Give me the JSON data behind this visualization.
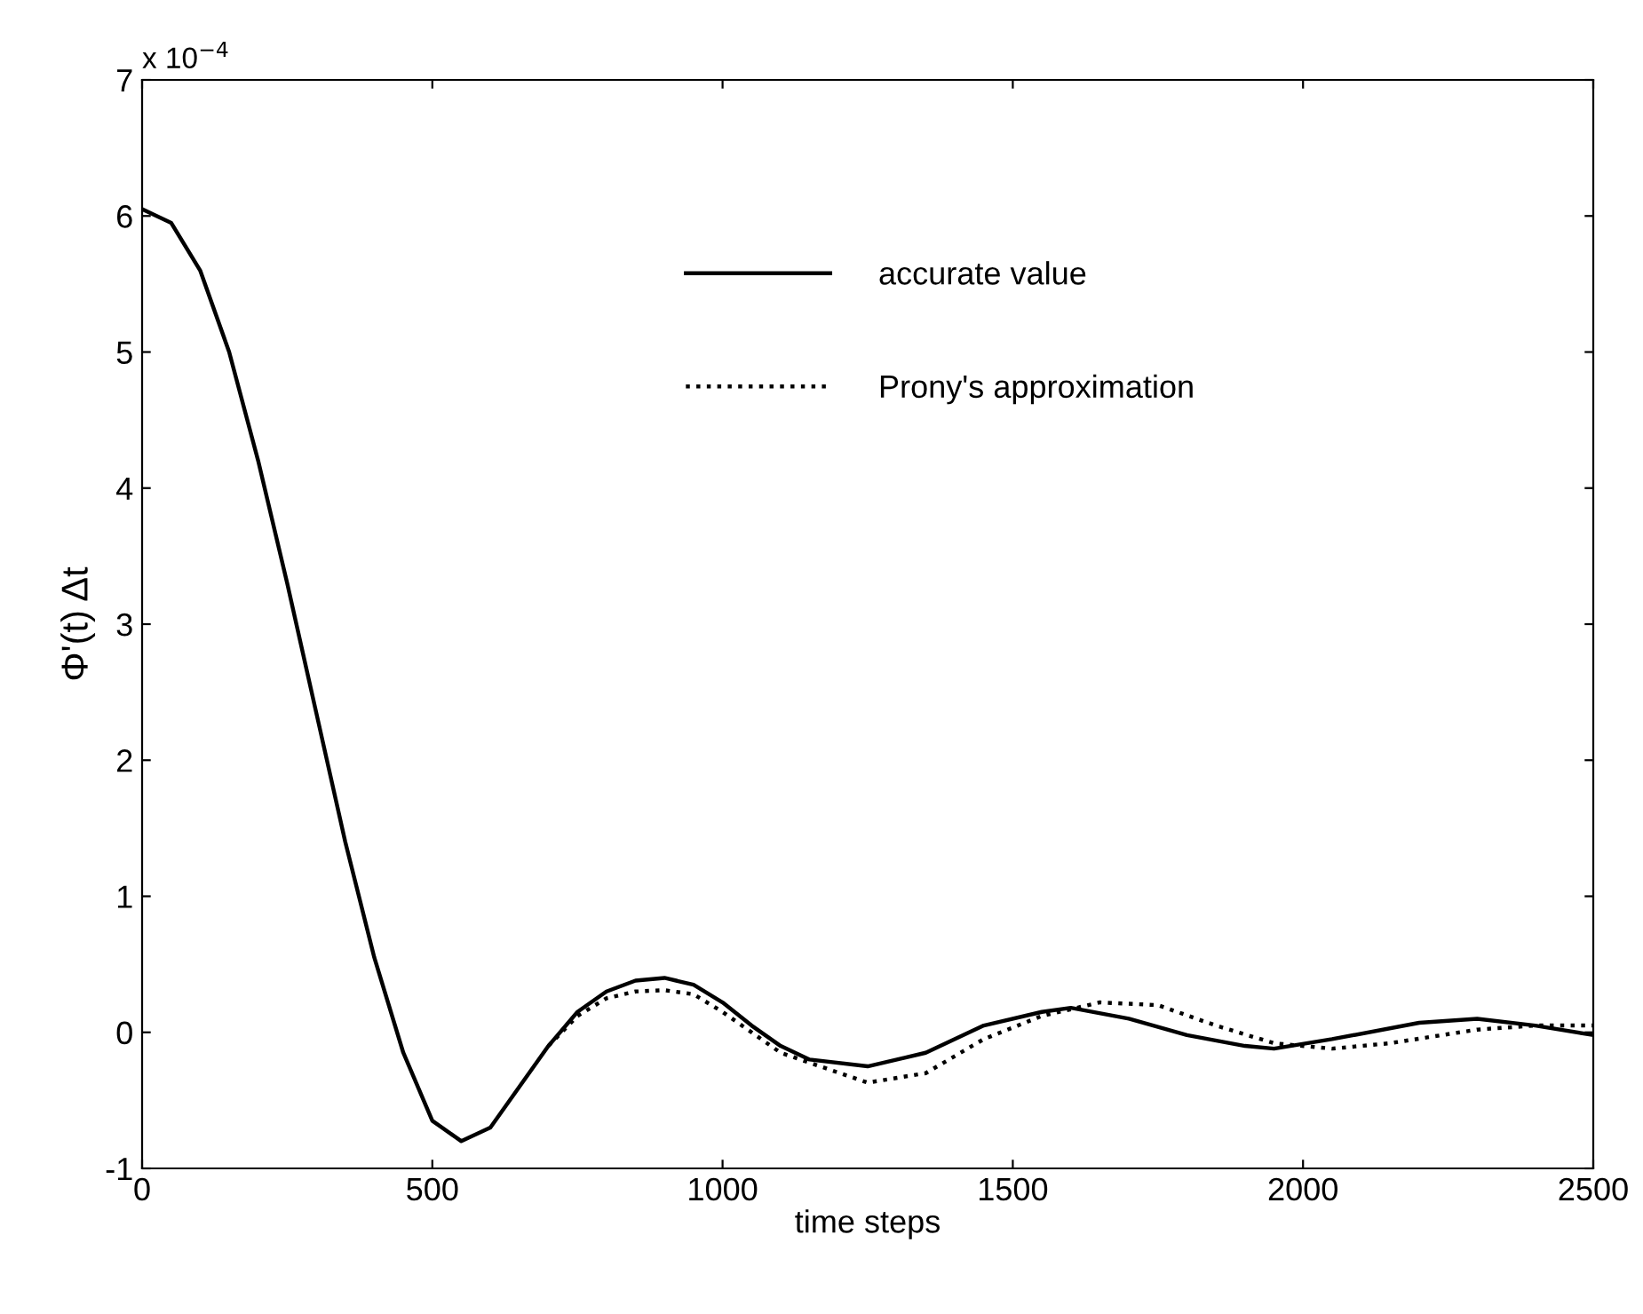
{
  "chart_data": {
    "type": "line",
    "xlabel": "time steps",
    "ylabel": "Φ'(t) Δt",
    "annotations": [
      "x 10$^{−4}$"
    ],
    "xlim": [
      0,
      2500
    ],
    "xticks": [
      0,
      500,
      1000,
      1500,
      2000,
      2500
    ],
    "ylim": [
      -1,
      7
    ],
    "yticks": [
      -1,
      0,
      1,
      2,
      3,
      4,
      5,
      6,
      7
    ],
    "grid": false,
    "legend": "top",
    "marker": "none",
    "series": [
      {
        "name": "accurate value",
        "color": "#000000",
        "line_style": "solid",
        "x": [
          0,
          50,
          100,
          150,
          200,
          250,
          300,
          350,
          400,
          450,
          500,
          550,
          600,
          650,
          700,
          750,
          800,
          850,
          900,
          950,
          1000,
          1050,
          1100,
          1150,
          1250,
          1350,
          1450,
          1550,
          1600,
          1700,
          1800,
          1900,
          1950,
          2050,
          2200,
          2300,
          2400,
          2500
        ],
        "values": [
          6.05,
          5.95,
          5.6,
          5.0,
          4.2,
          3.3,
          2.35,
          1.4,
          0.55,
          -0.15,
          -0.65,
          -0.8,
          -0.7,
          -0.4,
          -0.1,
          0.15,
          0.3,
          0.38,
          0.4,
          0.35,
          0.22,
          0.05,
          -0.1,
          -0.2,
          -0.25,
          -0.15,
          0.05,
          0.15,
          0.18,
          0.1,
          -0.02,
          -0.1,
          -0.12,
          -0.05,
          0.07,
          0.1,
          0.05,
          -0.02
        ]
      },
      {
        "name": "Prony's approximation",
        "color": "#000000",
        "line_style": "dotted",
        "x": [
          700,
          750,
          800,
          850,
          900,
          950,
          1000,
          1100,
          1250,
          1350,
          1450,
          1550,
          1650,
          1750,
          1850,
          1950,
          2050,
          2150,
          2300,
          2400,
          2500
        ],
        "values": [
          -0.1,
          0.12,
          0.25,
          0.3,
          0.31,
          0.28,
          0.15,
          -0.15,
          -0.37,
          -0.3,
          -0.05,
          0.12,
          0.22,
          0.2,
          0.05,
          -0.08,
          -0.12,
          -0.08,
          0.02,
          0.05,
          0.05
        ]
      }
    ]
  }
}
